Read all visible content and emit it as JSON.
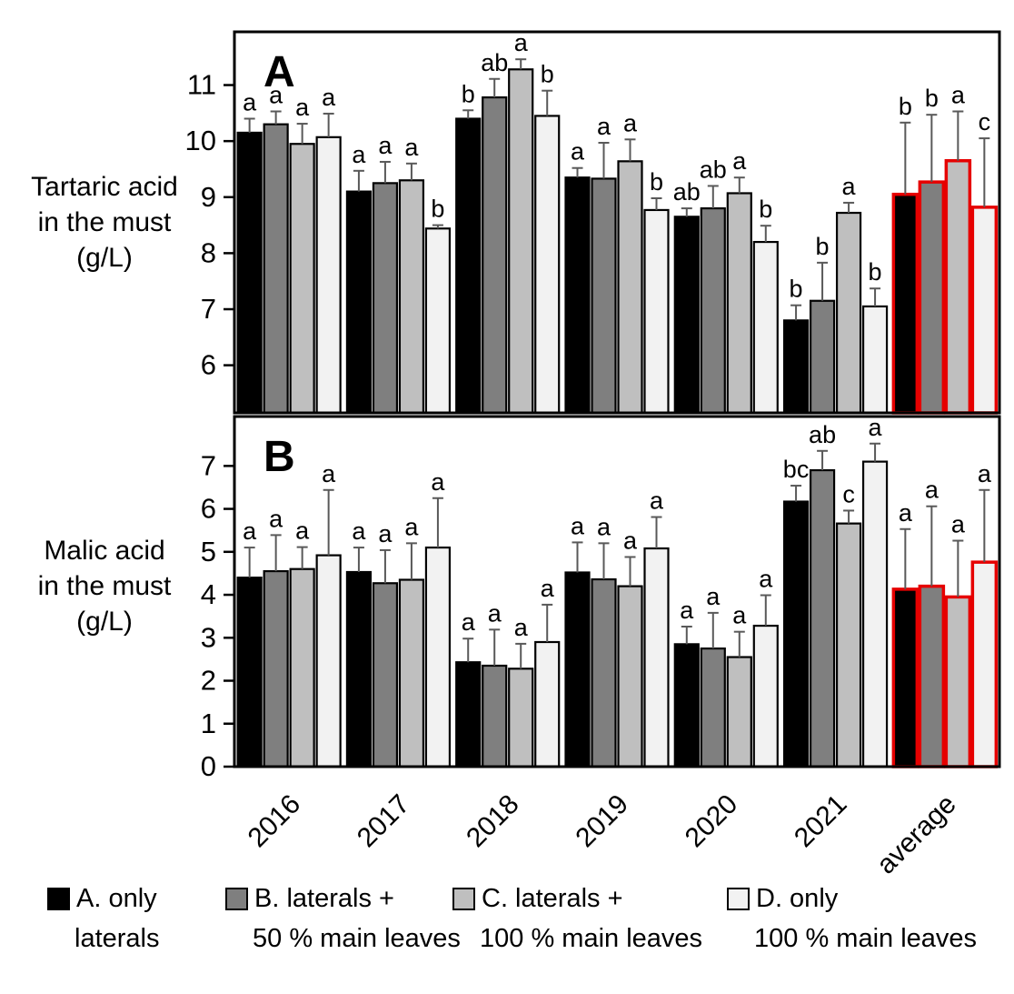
{
  "figure_name": "tartaric-and-malic-acid-bar-charts",
  "axis_titles": {
    "a_lines": [
      "Tartaric acid",
      "in the must",
      "(g/L)"
    ],
    "b_lines": [
      "Malic acid",
      "in the must",
      "(g/L)"
    ]
  },
  "legend": {
    "items": [
      {
        "line1": "A. only",
        "line2": "laterals",
        "color": "#000000"
      },
      {
        "line1": "B. laterals +",
        "line2": "50 % main leaves",
        "color": "#7f7f7f"
      },
      {
        "line1": "C. laterals +",
        "line2": "100 % main leaves",
        "color": "#bfbfbf"
      },
      {
        "line1": "D. only",
        "line2": "100 % main leaves",
        "color": "#f2f2f2"
      }
    ]
  },
  "colors": {
    "bar_outline": "#000000",
    "average_outline": "#e60000",
    "error_bar": "#595959",
    "text": "#000000"
  },
  "chart_data": [
    {
      "type": "bar",
      "panel_label": "A",
      "ylabel": "Tartaric acid in the must (g/L)",
      "categories": [
        "2016",
        "2017",
        "2018",
        "2019",
        "2020",
        "2021",
        "average"
      ],
      "highlight_category": "average",
      "ylim": [
        5.15,
        11.95
      ],
      "yticks": [
        6,
        7,
        8,
        9,
        10,
        11
      ],
      "grid": false,
      "series": [
        {
          "name": "A. only laterals",
          "color": "#000000",
          "values": [
            10.15,
            9.1,
            10.4,
            9.35,
            8.65,
            6.8,
            9.05
          ],
          "errors": [
            0.25,
            0.37,
            0.15,
            0.17,
            0.15,
            0.27,
            1.28
          ],
          "letters": [
            "a",
            "a",
            "b",
            "a",
            "ab",
            "b",
            "b"
          ]
        },
        {
          "name": "B. laterals + 50 % main leaves",
          "color": "#7f7f7f",
          "values": [
            10.3,
            9.25,
            10.78,
            9.33,
            8.8,
            7.15,
            9.27
          ],
          "errors": [
            0.23,
            0.38,
            0.33,
            0.64,
            0.4,
            0.68,
            1.2
          ],
          "letters": [
            "a",
            "a",
            "ab",
            "a",
            "ab",
            "b",
            "b"
          ]
        },
        {
          "name": "C. laterals + 100 % main leaves",
          "color": "#bfbfbf",
          "values": [
            9.95,
            9.3,
            11.28,
            9.64,
            9.07,
            8.72,
            9.65
          ],
          "errors": [
            0.36,
            0.3,
            0.18,
            0.39,
            0.28,
            0.18,
            0.88
          ],
          "letters": [
            "a",
            "a",
            "a",
            "a",
            "a",
            "a",
            "a"
          ]
        },
        {
          "name": "D. only 100 % main leaves",
          "color": "#f2f2f2",
          "values": [
            10.07,
            8.44,
            10.45,
            8.77,
            8.2,
            7.05,
            8.82
          ],
          "errors": [
            0.42,
            0.06,
            0.45,
            0.21,
            0.29,
            0.32,
            1.23
          ],
          "letters": [
            "a",
            "b",
            "b",
            "b",
            "b",
            "b",
            "c"
          ]
        }
      ]
    },
    {
      "type": "bar",
      "panel_label": "B",
      "ylabel": "Malic acid in the must (g/L)",
      "categories": [
        "2016",
        "2017",
        "2018",
        "2019",
        "2020",
        "2021",
        "average"
      ],
      "highlight_category": "average",
      "ylim": [
        0,
        8.15
      ],
      "yticks": [
        0,
        1,
        2,
        3,
        4,
        5,
        6,
        7
      ],
      "grid": false,
      "series": [
        {
          "name": "A. only laterals",
          "color": "#000000",
          "values": [
            4.4,
            4.53,
            2.43,
            4.52,
            2.85,
            6.17,
            4.13
          ],
          "errors": [
            0.7,
            0.57,
            0.55,
            0.7,
            0.41,
            0.37,
            1.4
          ],
          "letters": [
            "a",
            "a",
            "a",
            "a",
            "a",
            "bc",
            "a"
          ]
        },
        {
          "name": "B. laterals + 50 % main leaves",
          "color": "#7f7f7f",
          "values": [
            4.55,
            4.27,
            2.35,
            4.36,
            2.75,
            6.9,
            4.2
          ],
          "errors": [
            0.84,
            0.77,
            0.84,
            0.84,
            0.83,
            0.45,
            1.86
          ],
          "letters": [
            "a",
            "a",
            "a",
            "a",
            "a",
            "ab",
            "a"
          ]
        },
        {
          "name": "C. laterals + 100 % main leaves",
          "color": "#bfbfbf",
          "values": [
            4.6,
            4.35,
            2.28,
            4.2,
            2.55,
            5.66,
            3.95
          ],
          "errors": [
            0.51,
            0.85,
            0.58,
            0.68,
            0.59,
            0.3,
            1.31
          ],
          "letters": [
            "a",
            "a",
            "a",
            "a",
            "a",
            "c",
            "a"
          ]
        },
        {
          "name": "D. only 100 % main leaves",
          "color": "#f2f2f2",
          "values": [
            4.92,
            5.1,
            2.9,
            5.08,
            3.28,
            7.1,
            4.76
          ],
          "errors": [
            1.52,
            1.15,
            0.87,
            0.73,
            0.71,
            0.42,
            1.68
          ],
          "letters": [
            "a",
            "a",
            "a",
            "a",
            "a",
            "a",
            "a"
          ]
        }
      ]
    }
  ]
}
